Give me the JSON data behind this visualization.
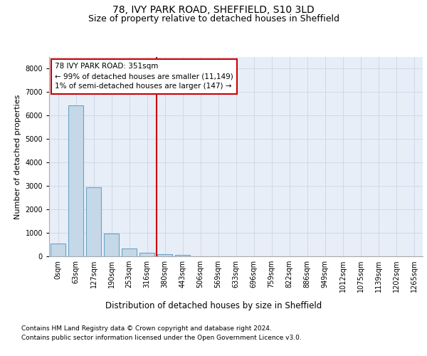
{
  "title": "78, IVY PARK ROAD, SHEFFIELD, S10 3LD",
  "subtitle": "Size of property relative to detached houses in Sheffield",
  "xlabel": "Distribution of detached houses by size in Sheffield",
  "ylabel": "Number of detached properties",
  "footnote1": "Contains HM Land Registry data © Crown copyright and database right 2024.",
  "footnote2": "Contains public sector information licensed under the Open Government Licence v3.0.",
  "bin_labels": [
    "0sqm",
    "63sqm",
    "127sqm",
    "190sqm",
    "253sqm",
    "316sqm",
    "380sqm",
    "443sqm",
    "506sqm",
    "569sqm",
    "633sqm",
    "696sqm",
    "759sqm",
    "822sqm",
    "886sqm",
    "949sqm",
    "1012sqm",
    "1075sqm",
    "1139sqm",
    "1202sqm",
    "1265sqm"
  ],
  "bar_values": [
    550,
    6430,
    2930,
    970,
    340,
    155,
    105,
    70,
    0,
    0,
    0,
    0,
    0,
    0,
    0,
    0,
    0,
    0,
    0,
    0,
    0
  ],
  "bar_color": "#c5d8e8",
  "bar_edge_color": "#6aa3c8",
  "annotation_text": "78 IVY PARK ROAD: 351sqm\n← 99% of detached houses are smaller (11,149)\n1% of semi-detached houses are larger (147) →",
  "annotation_box_color": "#ffffff",
  "annotation_box_edge": "#cc0000",
  "vline_color": "#cc0000",
  "ylim": [
    0,
    8500
  ],
  "yticks": [
    0,
    1000,
    2000,
    3000,
    4000,
    5000,
    6000,
    7000,
    8000
  ],
  "grid_color": "#d0d8e8",
  "bg_color": "#e8eef8",
  "title_fontsize": 10,
  "subtitle_fontsize": 9,
  "axis_label_fontsize": 8,
  "tick_fontsize": 7,
  "footnote_fontsize": 6.5,
  "annotation_fontsize": 7.5
}
